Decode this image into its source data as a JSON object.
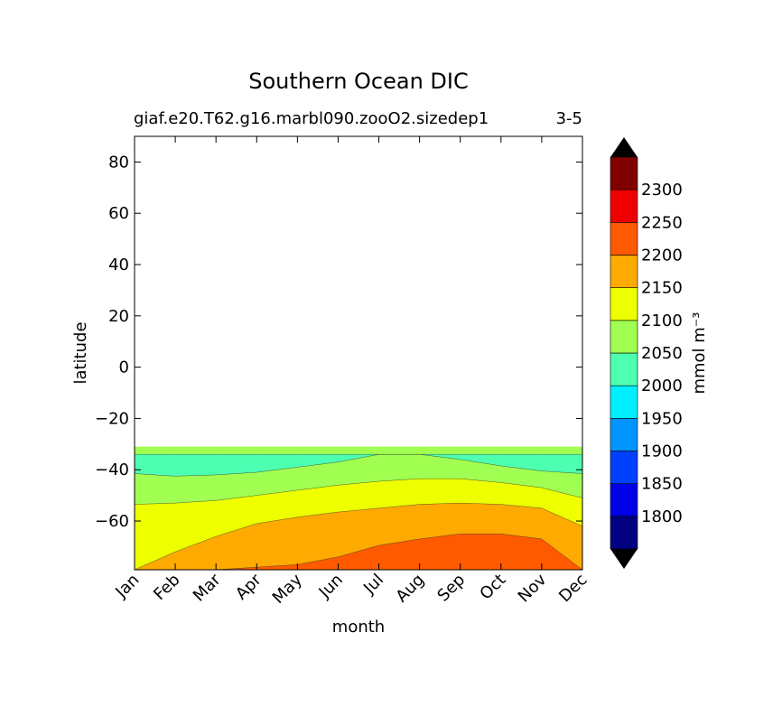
{
  "title": "Southern Ocean DIC",
  "subtitle_left": "giaf.e20.T62.g16.marbl090.zooO2.sizedep1",
  "subtitle_right": "3-5",
  "chart_data": {
    "type": "contour",
    "xlabel": "month",
    "ylabel": "latitude",
    "x_ticks": [
      "Jan",
      "Feb",
      "Mar",
      "Apr",
      "May",
      "Jun",
      "Jul",
      "Aug",
      "Sep",
      "Oct",
      "Nov",
      "Dec"
    ],
    "y_ticks": [
      80,
      60,
      40,
      20,
      0,
      -20,
      -40,
      -60
    ],
    "y_tick_labels": [
      "80",
      "60",
      "40",
      "20",
      "0",
      "−20",
      "−40",
      "−60"
    ],
    "xlim": [
      0,
      11
    ],
    "ylim": [
      -79,
      90
    ],
    "data_lat_range": [
      -78,
      -31
    ],
    "colorbar": {
      "label": "mmol m⁻³",
      "levels": [
        1800,
        1850,
        1900,
        1950,
        2000,
        2050,
        2100,
        2150,
        2200,
        2250,
        2300
      ],
      "tick_labels": [
        "1800",
        "1850",
        "1900",
        "1950",
        "2000",
        "2050",
        "2100",
        "2150",
        "2200",
        "2250",
        "2300"
      ],
      "colors": [
        "#000080",
        "#0000e6",
        "#0040ff",
        "#0094ff",
        "#00f0ff",
        "#4dffb0",
        "#a0ff50",
        "#eeff00",
        "#ffaa00",
        "#ff5a00",
        "#ee0000",
        "#800000"
      ],
      "extend": "both",
      "extend_color": "#000000"
    },
    "contours": [
      {
        "level": 2050,
        "upper_lat": [
          -31,
          -31,
          -31,
          -31,
          -31,
          -31,
          -31,
          -31,
          -31,
          -31,
          -31,
          -31
        ]
      },
      {
        "level": 2000,
        "note": "2000-2050 band near -34 to -42",
        "upper_lat": [
          -34,
          -34,
          -34,
          -34,
          -34,
          -34,
          -34,
          -34,
          -34,
          -34,
          -34,
          -34
        ],
        "lower_lat": [
          -41.5,
          -42.5,
          -42,
          -41,
          -39,
          -37,
          -34,
          -34,
          -36,
          -38.5,
          -40.5,
          -41.5
        ]
      },
      {
        "level": 2100,
        "upper_lat": [
          -53.5,
          -53,
          -52,
          -50,
          -48,
          -46,
          -44.5,
          -43.5,
          -43.5,
          -45,
          -47,
          -51
        ]
      },
      {
        "level": 2150,
        "upper_lat": [
          -79,
          -72,
          -66,
          -61,
          -58.5,
          -56.5,
          -55,
          -53.5,
          -53,
          -53.5,
          -55,
          -62
        ]
      },
      {
        "level": 2200,
        "upper_lat": [
          -79,
          -79,
          -79,
          -78,
          -77,
          -74,
          -69.5,
          -67,
          -65,
          -65,
          -67,
          -79
        ]
      }
    ]
  }
}
